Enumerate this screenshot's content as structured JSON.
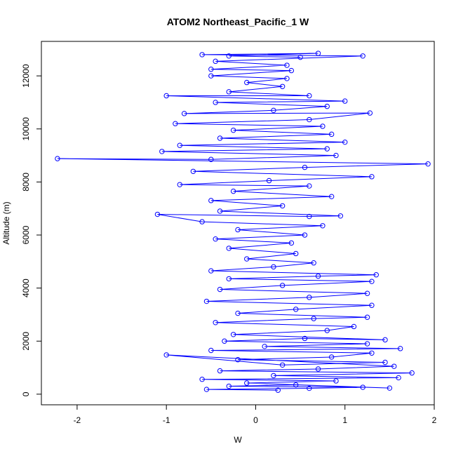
{
  "chart_data": {
    "type": "scatter",
    "title": "ATOM2 Northeast_Pacific_1 W",
    "xlabel": "W",
    "ylabel": "Altitude (m)",
    "xlim": [
      -2.4,
      2.0
    ],
    "ylim": [
      -400,
      13300
    ],
    "x_ticks": [
      -2,
      -1,
      0,
      1,
      2
    ],
    "y_ticks": [
      0,
      2000,
      4000,
      6000,
      8000,
      10000,
      12000
    ],
    "x_tick_labels": [
      "-2",
      "-1",
      "0",
      "1",
      "2"
    ],
    "y_tick_labels": [
      "0",
      "2000",
      "4000",
      "6000",
      "8000",
      "10000",
      "12000"
    ],
    "grid": false,
    "series": [
      {
        "color": "#0000ff",
        "marker": "open-circle",
        "line": true,
        "points": [
          [
            0.25,
            150
          ],
          [
            -0.55,
            180
          ],
          [
            0.6,
            220
          ],
          [
            1.2,
            260
          ],
          [
            -0.3,
            300
          ],
          [
            0.45,
            350
          ],
          [
            1.5,
            230
          ],
          [
            -0.1,
            420
          ],
          [
            0.9,
            500
          ],
          [
            -0.6,
            560
          ],
          [
            1.6,
            620
          ],
          [
            0.2,
            700
          ],
          [
            1.75,
            800
          ],
          [
            -0.4,
            880
          ],
          [
            0.7,
            950
          ],
          [
            1.55,
            1050
          ],
          [
            -1.0,
            1480
          ],
          [
            0.3,
            1100
          ],
          [
            1.45,
            1200
          ],
          [
            -0.2,
            1300
          ],
          [
            0.85,
            1400
          ],
          [
            1.3,
            1550
          ],
          [
            -0.5,
            1650
          ],
          [
            1.62,
            1720
          ],
          [
            0.1,
            1800
          ],
          [
            1.25,
            1900
          ],
          [
            -0.35,
            2000
          ],
          [
            0.55,
            2100
          ],
          [
            1.45,
            2050
          ],
          [
            -0.25,
            2250
          ],
          [
            0.8,
            2400
          ],
          [
            1.1,
            2550
          ],
          [
            -0.45,
            2700
          ],
          [
            0.65,
            2850
          ],
          [
            1.25,
            2900
          ],
          [
            -0.2,
            3050
          ],
          [
            0.45,
            3200
          ],
          [
            1.3,
            3350
          ],
          [
            -0.55,
            3500
          ],
          [
            0.6,
            3650
          ],
          [
            1.25,
            3800
          ],
          [
            -0.4,
            3950
          ],
          [
            0.3,
            4100
          ],
          [
            1.3,
            4250
          ],
          [
            -0.3,
            4350
          ],
          [
            0.7,
            4450
          ],
          [
            1.35,
            4500
          ],
          [
            -0.5,
            4650
          ],
          [
            0.2,
            4800
          ],
          [
            0.65,
            4950
          ],
          [
            -0.1,
            5100
          ],
          [
            0.45,
            5300
          ],
          [
            -0.3,
            5500
          ],
          [
            0.4,
            5700
          ],
          [
            -0.45,
            5850
          ],
          [
            0.55,
            6000
          ],
          [
            -0.2,
            6200
          ],
          [
            0.75,
            6350
          ],
          [
            -0.6,
            6500
          ],
          [
            -1.1,
            6780
          ],
          [
            0.6,
            6700
          ],
          [
            0.95,
            6720
          ],
          [
            -0.4,
            6900
          ],
          [
            0.3,
            7100
          ],
          [
            -0.5,
            7300
          ],
          [
            0.85,
            7450
          ],
          [
            -0.25,
            7650
          ],
          [
            0.6,
            7850
          ],
          [
            -0.85,
            7900
          ],
          [
            0.15,
            8050
          ],
          [
            1.3,
            8200
          ],
          [
            -0.7,
            8400
          ],
          [
            0.55,
            8550
          ],
          [
            1.93,
            8680
          ],
          [
            -2.22,
            8880
          ],
          [
            -0.5,
            8850
          ],
          [
            0.9,
            9000
          ],
          [
            -1.05,
            9150
          ],
          [
            0.8,
            9250
          ],
          [
            -0.85,
            9380
          ],
          [
            1.0,
            9500
          ],
          [
            -0.4,
            9650
          ],
          [
            0.85,
            9800
          ],
          [
            -0.25,
            9950
          ],
          [
            0.75,
            10100
          ],
          [
            -0.9,
            10200
          ],
          [
            0.6,
            10350
          ],
          [
            1.28,
            10600
          ],
          [
            -0.8,
            10580
          ],
          [
            0.2,
            10700
          ],
          [
            0.8,
            10850
          ],
          [
            -0.45,
            11000
          ],
          [
            1.0,
            11050
          ],
          [
            -1.0,
            11250
          ],
          [
            0.6,
            11250
          ],
          [
            -0.3,
            11400
          ],
          [
            0.3,
            11600
          ],
          [
            -0.1,
            11750
          ],
          [
            0.35,
            11900
          ],
          [
            -0.5,
            12000
          ],
          [
            0.4,
            12200
          ],
          [
            -0.5,
            12250
          ],
          [
            0.35,
            12400
          ],
          [
            -0.45,
            12550
          ],
          [
            1.2,
            12750
          ],
          [
            -0.6,
            12800
          ],
          [
            0.7,
            12850
          ],
          [
            -0.3,
            12750
          ],
          [
            0.5,
            12700
          ]
        ]
      }
    ]
  }
}
